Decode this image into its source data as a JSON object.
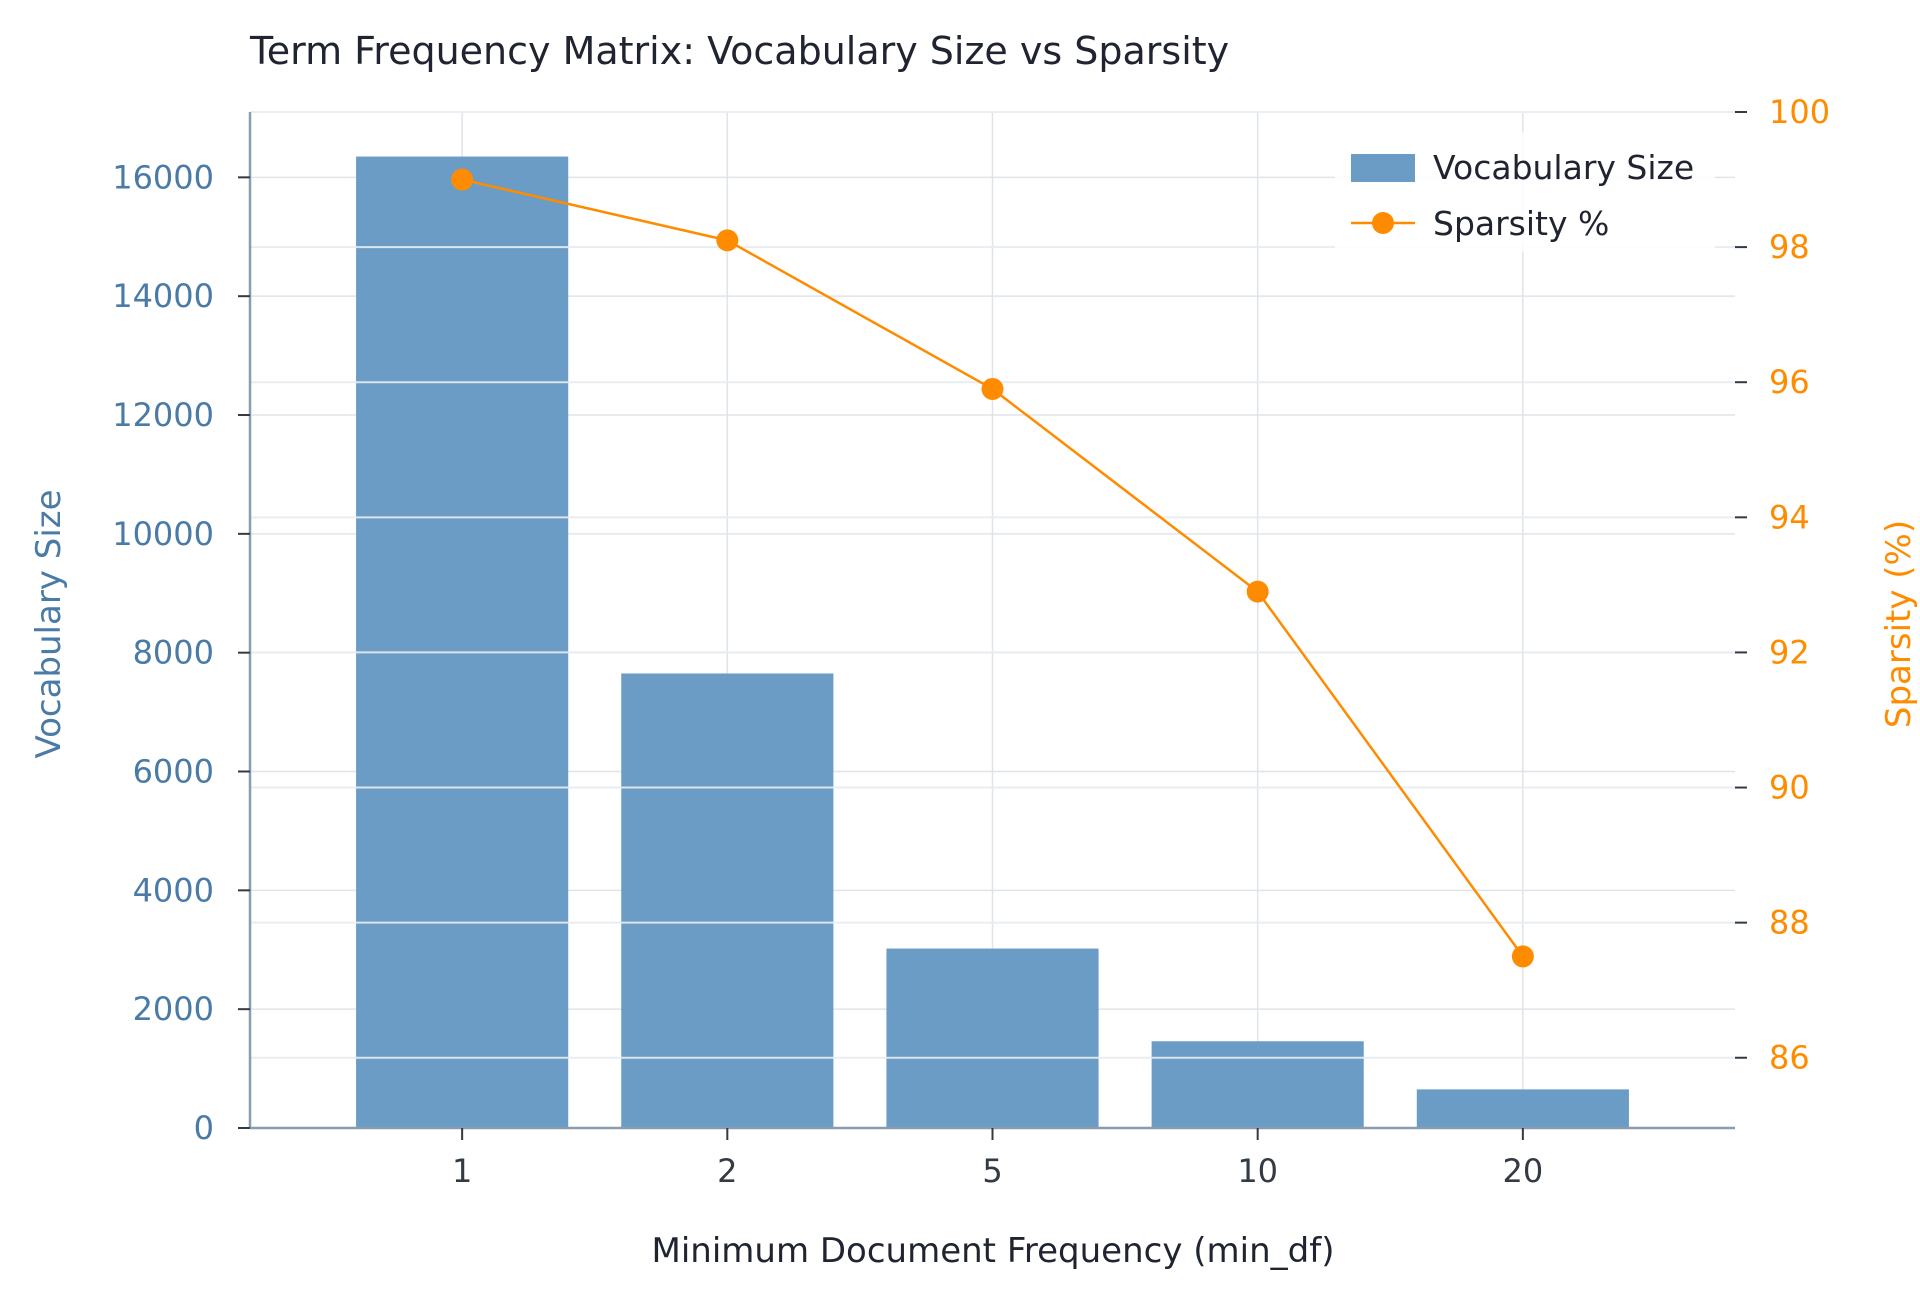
{
  "chart_data": {
    "type": "bar",
    "title": "Term Frequency Matrix: Vocabulary Size vs Sparsity",
    "xlabel": "Minimum Document Frequency (min_df)",
    "ylabel": "Vocabulary Size",
    "y2label": "Sparsity (%)",
    "categories": [
      "1",
      "2",
      "5",
      "10",
      "20"
    ],
    "series": [
      {
        "name": "Vocabulary Size",
        "type": "bar",
        "axis": "left",
        "color": "#6a9cc5",
        "values": [
          16350,
          7650,
          3020,
          1460,
          650
        ]
      },
      {
        "name": "Sparsity %",
        "type": "line",
        "axis": "right",
        "color": "#ff8c00",
        "values": [
          99.0,
          98.1,
          95.9,
          92.9,
          87.5
        ]
      }
    ],
    "ylim": [
      0,
      17100
    ],
    "y2lim": [
      84.96,
      100
    ],
    "yticks": [
      "0",
      "2000",
      "4000",
      "6000",
      "8000",
      "10000",
      "12000",
      "14000",
      "16000"
    ],
    "y2ticks": [
      "86",
      "88",
      "90",
      "92",
      "94",
      "96",
      "98",
      "100"
    ],
    "grid": true,
    "legend_position": "top-right",
    "colors": {
      "left_axis": "#4a7ba7",
      "right_axis": "#ff8c00",
      "bar": "#6a9cc5",
      "line": "#ff8c00",
      "grid": "#dfe4ea",
      "spine": "#8a9cb0"
    }
  }
}
